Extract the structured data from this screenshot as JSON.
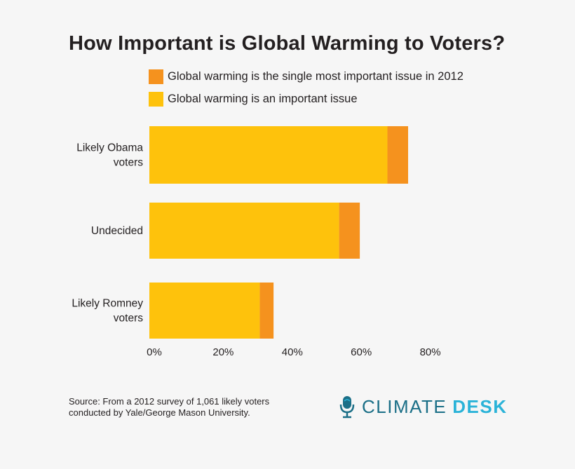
{
  "title": "How Important is Global Warming to Voters?",
  "colors": {
    "important": "#fec20c",
    "most_important": "#f5921e",
    "text": "#231f20",
    "logo_dark": "#1b6f87",
    "logo_light": "#2bb3d8"
  },
  "legend": [
    {
      "label": "Global warming is the single most important issue in 2012",
      "color": "#f5921e"
    },
    {
      "label": "Global warming is an important issue",
      "color": "#fec20c"
    }
  ],
  "chart_data": {
    "type": "bar",
    "orientation": "horizontal",
    "stacked": true,
    "categories": [
      "Likely Obama voters",
      "Undecided",
      "Likely Romney voters"
    ],
    "category_lines": [
      [
        "Likely Obama",
        "voters"
      ],
      [
        "Undecided"
      ],
      [
        "Likely Romney",
        "voters"
      ]
    ],
    "series": [
      {
        "name": "Global warming is an important issue",
        "values": [
          69,
          55,
          32
        ],
        "color": "#fec20c"
      },
      {
        "name": "Global warming is the single most important issue in 2012",
        "values": [
          6,
          6,
          4
        ],
        "color": "#f5921e"
      }
    ],
    "xlim": [
      0,
      80
    ],
    "xticks": [
      "0%",
      "20%",
      "40%",
      "60%",
      "80%"
    ],
    "xtick_values": [
      0,
      20,
      40,
      60,
      80
    ],
    "grid": false,
    "legend_position": "top"
  },
  "source": "Source: From a 2012 survey of 1,061 likely voters\nconducted by Yale/George Mason University.",
  "logo": {
    "icon": "microphone-icon",
    "text_a": "CLIMATE",
    "text_b": "DESK"
  }
}
